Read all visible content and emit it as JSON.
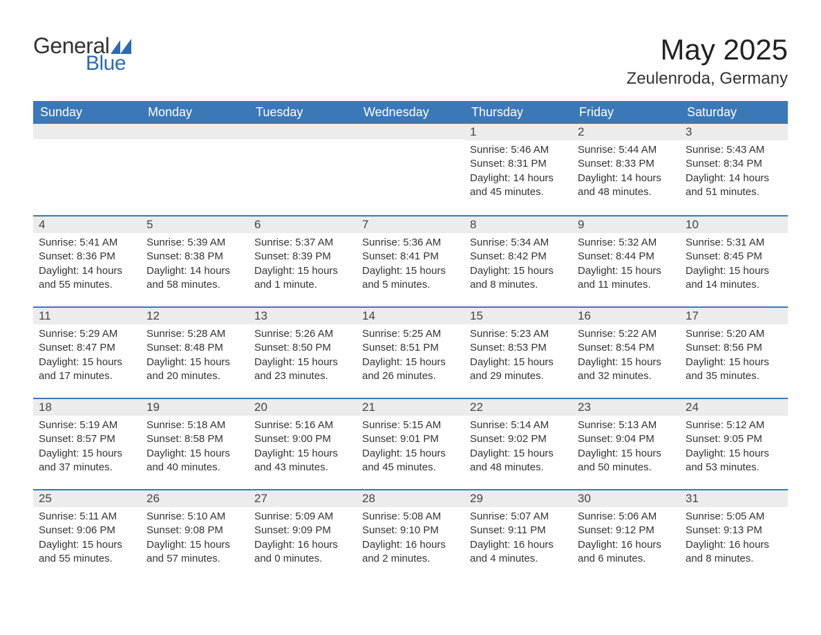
{
  "logo": {
    "word1": "General",
    "word2": "Blue",
    "tri_color": "#2b6cb0"
  },
  "title": "May 2025",
  "location": "Zeulenroda, Germany",
  "header_bg": "#3b78b8",
  "header_text": "#ffffff",
  "daynum_bg": "#ececec",
  "accent_border": "#3b78b8",
  "body_text": "#333333",
  "week_header_fontsize": 18,
  "title_fontsize": 42,
  "location_fontsize": 24,
  "body_fontsize": 15,
  "days_of_week": [
    "Sunday",
    "Monday",
    "Tuesday",
    "Wednesday",
    "Thursday",
    "Friday",
    "Saturday"
  ],
  "weeks": [
    [
      null,
      null,
      null,
      null,
      {
        "n": "1",
        "sr": "Sunrise: 5:46 AM",
        "ss": "Sunset: 8:31 PM",
        "dl": "Daylight: 14 hours and 45 minutes."
      },
      {
        "n": "2",
        "sr": "Sunrise: 5:44 AM",
        "ss": "Sunset: 8:33 PM",
        "dl": "Daylight: 14 hours and 48 minutes."
      },
      {
        "n": "3",
        "sr": "Sunrise: 5:43 AM",
        "ss": "Sunset: 8:34 PM",
        "dl": "Daylight: 14 hours and 51 minutes."
      }
    ],
    [
      {
        "n": "4",
        "sr": "Sunrise: 5:41 AM",
        "ss": "Sunset: 8:36 PM",
        "dl": "Daylight: 14 hours and 55 minutes."
      },
      {
        "n": "5",
        "sr": "Sunrise: 5:39 AM",
        "ss": "Sunset: 8:38 PM",
        "dl": "Daylight: 14 hours and 58 minutes."
      },
      {
        "n": "6",
        "sr": "Sunrise: 5:37 AM",
        "ss": "Sunset: 8:39 PM",
        "dl": "Daylight: 15 hours and 1 minute."
      },
      {
        "n": "7",
        "sr": "Sunrise: 5:36 AM",
        "ss": "Sunset: 8:41 PM",
        "dl": "Daylight: 15 hours and 5 minutes."
      },
      {
        "n": "8",
        "sr": "Sunrise: 5:34 AM",
        "ss": "Sunset: 8:42 PM",
        "dl": "Daylight: 15 hours and 8 minutes."
      },
      {
        "n": "9",
        "sr": "Sunrise: 5:32 AM",
        "ss": "Sunset: 8:44 PM",
        "dl": "Daylight: 15 hours and 11 minutes."
      },
      {
        "n": "10",
        "sr": "Sunrise: 5:31 AM",
        "ss": "Sunset: 8:45 PM",
        "dl": "Daylight: 15 hours and 14 minutes."
      }
    ],
    [
      {
        "n": "11",
        "sr": "Sunrise: 5:29 AM",
        "ss": "Sunset: 8:47 PM",
        "dl": "Daylight: 15 hours and 17 minutes."
      },
      {
        "n": "12",
        "sr": "Sunrise: 5:28 AM",
        "ss": "Sunset: 8:48 PM",
        "dl": "Daylight: 15 hours and 20 minutes."
      },
      {
        "n": "13",
        "sr": "Sunrise: 5:26 AM",
        "ss": "Sunset: 8:50 PM",
        "dl": "Daylight: 15 hours and 23 minutes."
      },
      {
        "n": "14",
        "sr": "Sunrise: 5:25 AM",
        "ss": "Sunset: 8:51 PM",
        "dl": "Daylight: 15 hours and 26 minutes."
      },
      {
        "n": "15",
        "sr": "Sunrise: 5:23 AM",
        "ss": "Sunset: 8:53 PM",
        "dl": "Daylight: 15 hours and 29 minutes."
      },
      {
        "n": "16",
        "sr": "Sunrise: 5:22 AM",
        "ss": "Sunset: 8:54 PM",
        "dl": "Daylight: 15 hours and 32 minutes."
      },
      {
        "n": "17",
        "sr": "Sunrise: 5:20 AM",
        "ss": "Sunset: 8:56 PM",
        "dl": "Daylight: 15 hours and 35 minutes."
      }
    ],
    [
      {
        "n": "18",
        "sr": "Sunrise: 5:19 AM",
        "ss": "Sunset: 8:57 PM",
        "dl": "Daylight: 15 hours and 37 minutes."
      },
      {
        "n": "19",
        "sr": "Sunrise: 5:18 AM",
        "ss": "Sunset: 8:58 PM",
        "dl": "Daylight: 15 hours and 40 minutes."
      },
      {
        "n": "20",
        "sr": "Sunrise: 5:16 AM",
        "ss": "Sunset: 9:00 PM",
        "dl": "Daylight: 15 hours and 43 minutes."
      },
      {
        "n": "21",
        "sr": "Sunrise: 5:15 AM",
        "ss": "Sunset: 9:01 PM",
        "dl": "Daylight: 15 hours and 45 minutes."
      },
      {
        "n": "22",
        "sr": "Sunrise: 5:14 AM",
        "ss": "Sunset: 9:02 PM",
        "dl": "Daylight: 15 hours and 48 minutes."
      },
      {
        "n": "23",
        "sr": "Sunrise: 5:13 AM",
        "ss": "Sunset: 9:04 PM",
        "dl": "Daylight: 15 hours and 50 minutes."
      },
      {
        "n": "24",
        "sr": "Sunrise: 5:12 AM",
        "ss": "Sunset: 9:05 PM",
        "dl": "Daylight: 15 hours and 53 minutes."
      }
    ],
    [
      {
        "n": "25",
        "sr": "Sunrise: 5:11 AM",
        "ss": "Sunset: 9:06 PM",
        "dl": "Daylight: 15 hours and 55 minutes."
      },
      {
        "n": "26",
        "sr": "Sunrise: 5:10 AM",
        "ss": "Sunset: 9:08 PM",
        "dl": "Daylight: 15 hours and 57 minutes."
      },
      {
        "n": "27",
        "sr": "Sunrise: 5:09 AM",
        "ss": "Sunset: 9:09 PM",
        "dl": "Daylight: 16 hours and 0 minutes."
      },
      {
        "n": "28",
        "sr": "Sunrise: 5:08 AM",
        "ss": "Sunset: 9:10 PM",
        "dl": "Daylight: 16 hours and 2 minutes."
      },
      {
        "n": "29",
        "sr": "Sunrise: 5:07 AM",
        "ss": "Sunset: 9:11 PM",
        "dl": "Daylight: 16 hours and 4 minutes."
      },
      {
        "n": "30",
        "sr": "Sunrise: 5:06 AM",
        "ss": "Sunset: 9:12 PM",
        "dl": "Daylight: 16 hours and 6 minutes."
      },
      {
        "n": "31",
        "sr": "Sunrise: 5:05 AM",
        "ss": "Sunset: 9:13 PM",
        "dl": "Daylight: 16 hours and 8 minutes."
      }
    ]
  ]
}
